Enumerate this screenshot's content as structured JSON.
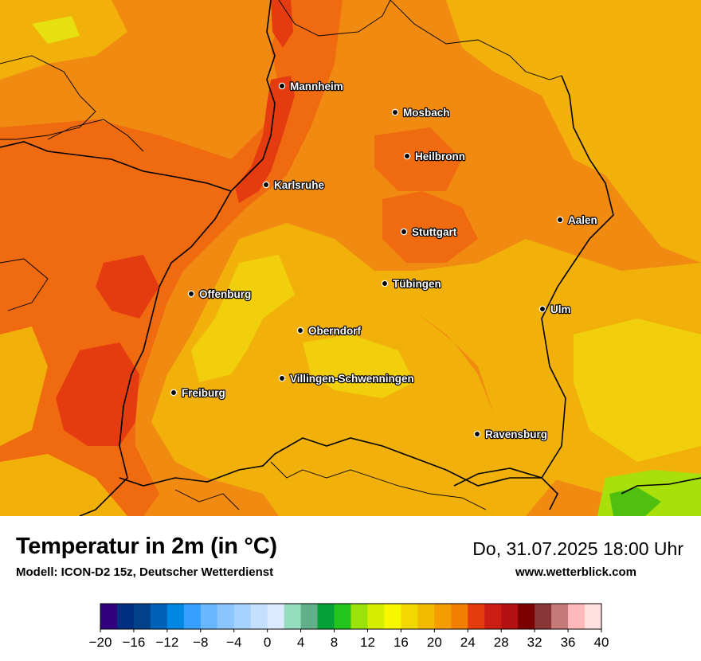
{
  "title": "Temperatur in 2m (in °C)",
  "model": "Modell: ICON-D2 15z, Deutscher Wetterdienst",
  "datetime": "Do, 31.07.2025 18:00 Uhr",
  "website": "www.wetterblick.com",
  "cities": [
    {
      "name": "Mannheim"
    },
    {
      "name": "Mosbach"
    },
    {
      "name": "Heilbronn"
    },
    {
      "name": "Karlsruhe"
    },
    {
      "name": "Aalen"
    },
    {
      "name": "Stuttgart"
    },
    {
      "name": "Tübingen"
    },
    {
      "name": "Offenburg"
    },
    {
      "name": "Ulm"
    },
    {
      "name": "Oberndorf"
    },
    {
      "name": "Villingen-Schwenningen"
    },
    {
      "name": "Freiburg"
    },
    {
      "name": "Ravensburg"
    }
  ],
  "legend": {
    "ticks": [
      "−20",
      "−16",
      "−12",
      "−8",
      "−4",
      "0",
      "4",
      "8",
      "12",
      "16",
      "20",
      "24",
      "28",
      "32",
      "36",
      "40"
    ],
    "colors": [
      "#32007f",
      "#002e80",
      "#00418a",
      "#0061b9",
      "#0087e3",
      "#37a0ff",
      "#68b7ff",
      "#8cc4ff",
      "#a6d2ff",
      "#c5e0ff",
      "#dbeaff",
      "#96dcbe",
      "#62b08a",
      "#04a236",
      "#23c41d",
      "#9be10a",
      "#d6ef00",
      "#f7f700",
      "#f3d800",
      "#f2bb00",
      "#f39d00",
      "#f38000",
      "#e53c0e",
      "#cc1d14",
      "#b31012",
      "#7c0001",
      "#8a3636",
      "#c67979",
      "#ffb9b9",
      "#ffe1e1"
    ]
  }
}
